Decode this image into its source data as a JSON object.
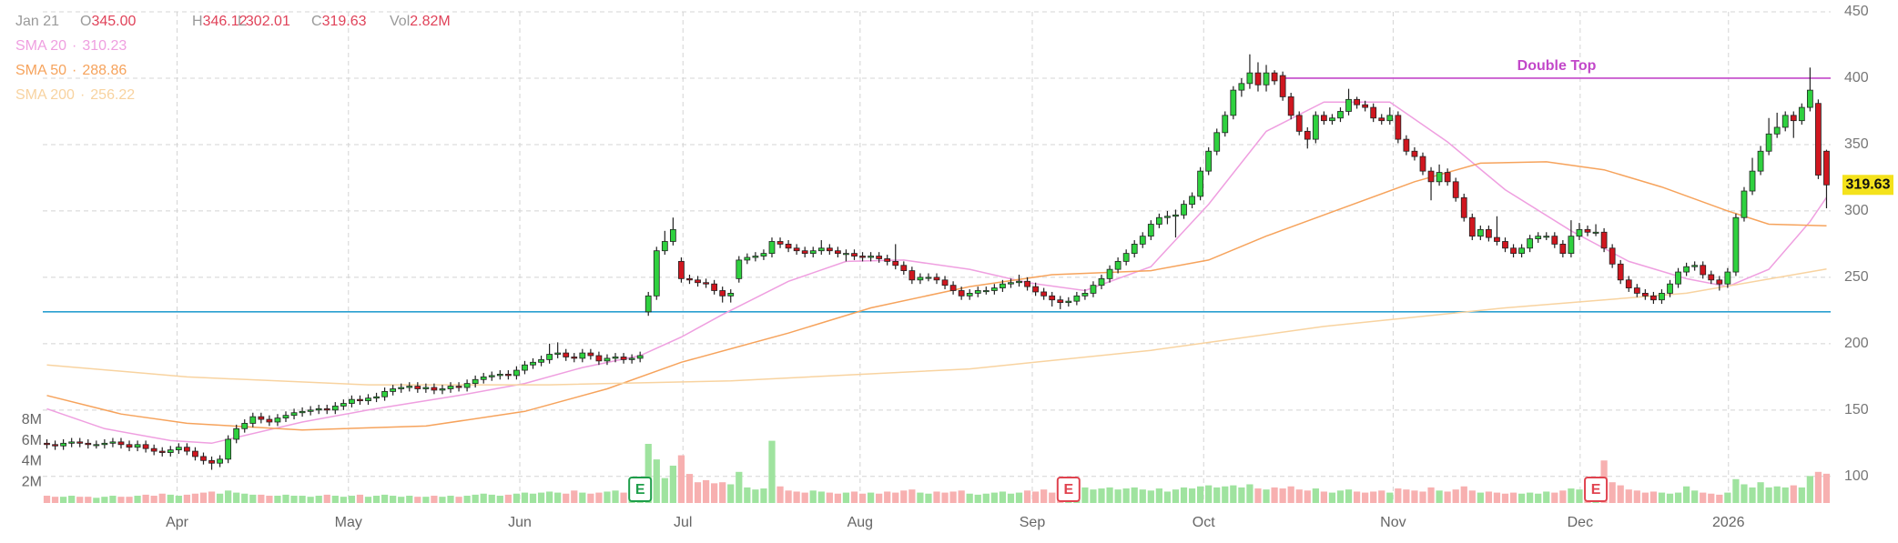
{
  "header": {
    "date": "Jan 21",
    "fields": [
      {
        "key": "O",
        "value": "345.00"
      },
      {
        "key": "H",
        "value": "346.12"
      },
      {
        "key": "L",
        "value": "302.01"
      },
      {
        "key": "C",
        "value": "319.63"
      },
      {
        "key": "Vol",
        "value": "2.82M"
      }
    ]
  },
  "chart_data": {
    "type": "candlestick",
    "open": [
      125,
      124,
      123,
      125,
      126,
      125,
      124,
      124,
      125,
      126,
      124,
      122,
      124,
      121,
      119,
      118,
      120,
      122,
      119,
      115,
      112,
      110,
      113,
      128,
      136,
      140,
      145,
      143,
      141,
      144,
      146,
      148,
      149,
      150,
      151,
      150,
      153,
      155,
      158,
      157,
      159,
      160,
      164,
      166,
      167,
      168,
      166,
      167,
      165,
      166,
      168,
      167,
      170,
      173,
      175,
      176,
      177,
      176,
      180,
      184,
      186,
      188,
      192,
      193,
      190,
      189,
      193,
      191,
      187,
      189,
      190,
      188,
      189,
      224,
      236,
      270,
      277,
      262,
      249,
      248,
      246,
      245,
      240,
      236,
      249,
      263,
      265,
      266,
      268,
      277,
      275,
      272,
      270,
      268,
      270,
      272,
      270,
      268,
      268,
      266,
      265,
      266,
      264,
      262,
      259,
      255,
      248,
      250,
      250,
      248,
      244,
      240,
      236,
      238,
      240,
      240,
      242,
      245,
      246,
      247,
      243,
      239,
      236,
      233,
      231,
      232,
      236,
      238,
      244,
      249,
      256,
      262,
      268,
      275,
      281,
      290,
      295,
      296,
      297,
      305,
      311,
      330,
      345,
      359,
      372,
      391,
      396,
      404,
      395,
      404,
      402,
      386,
      372,
      360,
      354,
      372,
      368,
      370,
      375,
      384,
      380,
      378,
      370,
      368,
      372,
      354,
      345,
      341,
      330,
      322,
      329,
      322,
      310,
      295,
      281,
      286,
      280,
      277,
      272,
      268,
      272,
      279,
      281,
      281,
      275,
      268,
      281,
      286,
      284,
      284,
      272,
      260,
      248,
      242,
      238,
      236,
      233,
      238,
      245,
      254,
      258,
      259,
      252,
      248,
      245,
      254,
      295,
      315,
      330,
      345,
      358,
      363,
      372,
      368,
      378,
      381,
      345
    ],
    "high": [
      128,
      127,
      128,
      129,
      129,
      128,
      127,
      128,
      129,
      129,
      127,
      127,
      127,
      124,
      122,
      123,
      125,
      125,
      122,
      118,
      115,
      116,
      131,
      139,
      143,
      148,
      148,
      146,
      147,
      149,
      151,
      152,
      153,
      154,
      154,
      156,
      158,
      161,
      161,
      162,
      163,
      167,
      169,
      170,
      171,
      171,
      170,
      170,
      169,
      171,
      171,
      173,
      176,
      178,
      179,
      180,
      180,
      183,
      187,
      189,
      191,
      200,
      201,
      196,
      193,
      196,
      196,
      194,
      192,
      193,
      193,
      192,
      194,
      239,
      273,
      285,
      295,
      265,
      252,
      251,
      249,
      248,
      243,
      241,
      266,
      268,
      269,
      271,
      280,
      280,
      278,
      275,
      273,
      273,
      278,
      275,
      273,
      271,
      271,
      269,
      269,
      269,
      267,
      275,
      262,
      258,
      253,
      253,
      253,
      251,
      247,
      243,
      241,
      243,
      243,
      245,
      248,
      249,
      252,
      250,
      246,
      242,
      239,
      236,
      235,
      239,
      241,
      247,
      252,
      259,
      265,
      271,
      278,
      284,
      293,
      298,
      300,
      301,
      308,
      314,
      333,
      348,
      362,
      375,
      394,
      400,
      418,
      412,
      410,
      406,
      405,
      389,
      375,
      363,
      375,
      375,
      373,
      378,
      392,
      386,
      383,
      381,
      373,
      378,
      375,
      357,
      348,
      344,
      333,
      335,
      332,
      325,
      313,
      298,
      289,
      289,
      296,
      280,
      275,
      275,
      282,
      284,
      284,
      284,
      278,
      293,
      291,
      289,
      290,
      287,
      275,
      263,
      251,
      245,
      241,
      239,
      241,
      248,
      257,
      261,
      262,
      262,
      255,
      251,
      257,
      298,
      318,
      340,
      349,
      370,
      374,
      375,
      375,
      381,
      408,
      384,
      346.12
    ],
    "low": [
      121,
      120,
      120,
      122,
      122,
      121,
      121,
      121,
      122,
      121,
      119,
      119,
      118,
      116,
      115,
      115,
      117,
      116,
      112,
      109,
      105,
      107,
      110,
      125,
      133,
      137,
      140,
      138,
      138,
      141,
      143,
      145,
      146,
      147,
      147,
      147,
      150,
      152,
      154,
      154,
      156,
      157,
      161,
      163,
      164,
      163,
      163,
      162,
      162,
      163,
      164,
      164,
      167,
      170,
      172,
      173,
      173,
      173,
      177,
      181,
      183,
      185,
      189,
      187,
      186,
      186,
      188,
      184,
      184,
      186,
      185,
      185,
      186,
      221,
      233,
      267,
      274,
      246,
      245,
      243,
      242,
      237,
      231,
      231,
      246,
      260,
      262,
      263,
      265,
      272,
      269,
      267,
      265,
      265,
      267,
      267,
      265,
      262,
      263,
      262,
      262,
      261,
      259,
      256,
      252,
      245,
      245,
      247,
      245,
      241,
      237,
      233,
      233,
      235,
      237,
      237,
      239,
      242,
      243,
      240,
      236,
      233,
      228,
      226,
      228,
      229,
      233,
      235,
      241,
      246,
      253,
      259,
      265,
      272,
      278,
      287,
      290,
      280,
      294,
      302,
      308,
      327,
      342,
      356,
      369,
      386,
      392,
      390,
      390,
      395,
      383,
      369,
      357,
      347,
      351,
      365,
      365,
      367,
      372,
      377,
      375,
      367,
      365,
      365,
      351,
      342,
      338,
      327,
      308,
      319,
      319,
      307,
      292,
      278,
      278,
      277,
      274,
      269,
      265,
      265,
      269,
      276,
      278,
      272,
      265,
      265,
      278,
      281,
      281,
      269,
      257,
      245,
      239,
      235,
      233,
      230,
      230,
      235,
      242,
      251,
      255,
      249,
      245,
      240,
      242,
      251,
      292,
      312,
      327,
      342,
      355,
      360,
      355,
      365,
      375,
      324,
      302.01
    ],
    "close": [
      124,
      123,
      125,
      126,
      125,
      124,
      124,
      125,
      126,
      124,
      122,
      124,
      121,
      119,
      118,
      120,
      122,
      119,
      115,
      112,
      110,
      113,
      128,
      136,
      140,
      145,
      143,
      141,
      144,
      146,
      148,
      149,
      150,
      151,
      150,
      153,
      155,
      158,
      157,
      159,
      160,
      164,
      166,
      167,
      168,
      166,
      167,
      165,
      166,
      168,
      167,
      170,
      173,
      175,
      176,
      177,
      176,
      180,
      184,
      186,
      188,
      192,
      193,
      190,
      189,
      193,
      191,
      187,
      189,
      190,
      188,
      189,
      191,
      236,
      270,
      277,
      286,
      249,
      248,
      246,
      245,
      240,
      236,
      238,
      263,
      265,
      266,
      268,
      277,
      275,
      272,
      270,
      268,
      270,
      272,
      270,
      268,
      268,
      266,
      265,
      266,
      264,
      262,
      259,
      255,
      248,
      250,
      250,
      248,
      244,
      240,
      236,
      238,
      240,
      240,
      242,
      245,
      246,
      247,
      243,
      239,
      236,
      233,
      231,
      232,
      236,
      238,
      244,
      249,
      256,
      262,
      268,
      275,
      281,
      290,
      295,
      296,
      297,
      305,
      311,
      330,
      345,
      359,
      372,
      391,
      396,
      404,
      395,
      404,
      398,
      386,
      372,
      360,
      354,
      372,
      368,
      370,
      375,
      384,
      380,
      378,
      370,
      368,
      372,
      354,
      345,
      341,
      330,
      322,
      329,
      322,
      310,
      295,
      281,
      286,
      280,
      277,
      272,
      268,
      272,
      279,
      281,
      281,
      275,
      268,
      281,
      286,
      284,
      284,
      272,
      260,
      248,
      242,
      238,
      236,
      233,
      238,
      245,
      254,
      258,
      259,
      252,
      248,
      245,
      254,
      295,
      315,
      330,
      345,
      358,
      363,
      372,
      368,
      378,
      391,
      327,
      319.63
    ],
    "volume": [
      0.7,
      0.6,
      0.6,
      0.7,
      0.6,
      0.6,
      0.5,
      0.6,
      0.7,
      0.6,
      0.6,
      0.7,
      0.8,
      0.7,
      0.9,
      0.8,
      0.7,
      0.8,
      0.9,
      1.0,
      1.1,
      0.9,
      1.2,
      1.0,
      0.9,
      0.8,
      0.8,
      0.7,
      0.7,
      0.8,
      0.7,
      0.7,
      0.6,
      0.7,
      0.8,
      0.7,
      0.6,
      0.7,
      0.8,
      0.6,
      0.7,
      0.8,
      0.7,
      0.6,
      0.7,
      0.6,
      0.6,
      0.7,
      0.6,
      0.7,
      0.6,
      0.7,
      0.8,
      0.9,
      0.8,
      0.7,
      0.8,
      0.9,
      1.0,
      0.9,
      1.0,
      1.1,
      1.0,
      0.9,
      1.2,
      1.0,
      0.9,
      1.0,
      1.1,
      1.2,
      1.0,
      1.1,
      1.3,
      5.7,
      4.2,
      2.4,
      3.6,
      4.6,
      2.8,
      2.0,
      2.2,
      1.9,
      2.0,
      1.8,
      3.0,
      1.5,
      1.3,
      1.4,
      6.0,
      1.6,
      1.2,
      1.1,
      1.0,
      1.2,
      1.1,
      1.0,
      0.9,
      1.0,
      1.1,
      0.9,
      1.0,
      0.9,
      1.1,
      1.0,
      1.2,
      1.3,
      1.0,
      0.9,
      1.1,
      1.0,
      1.1,
      1.2,
      0.9,
      0.8,
      0.9,
      1.0,
      1.1,
      0.9,
      1.0,
      1.2,
      1.1,
      1.3,
      1.0,
      1.2,
      1.6,
      1.4,
      1.5,
      1.3,
      1.4,
      1.5,
      1.3,
      1.4,
      1.5,
      1.3,
      1.2,
      1.4,
      1.1,
      1.3,
      1.5,
      1.4,
      1.6,
      1.7,
      1.5,
      1.6,
      1.7,
      1.5,
      1.8,
      1.4,
      1.3,
      1.5,
      1.4,
      1.6,
      1.3,
      1.2,
      1.4,
      1.1,
      1.0,
      1.2,
      1.3,
      1.1,
      1.0,
      1.1,
      1.2,
      1.0,
      1.4,
      1.3,
      1.2,
      1.1,
      1.5,
      1.2,
      1.1,
      1.3,
      1.6,
      1.2,
      1.0,
      1.1,
      1.0,
      0.9,
      1.0,
      0.9,
      1.0,
      0.9,
      1.1,
      1.0,
      1.2,
      1.4,
      1.3,
      1.2,
      2.5,
      4.1,
      2.0,
      1.7,
      1.3,
      1.2,
      1.0,
      1.1,
      1.0,
      0.9,
      1.0,
      1.6,
      1.2,
      1.0,
      0.9,
      0.8,
      1.0,
      2.3,
      1.8,
      1.5,
      2.0,
      1.5,
      1.6,
      1.5,
      1.7,
      1.5,
      2.6,
      3.0,
      2.82
    ],
    "up_color": "#2fd13f",
    "down_color": "#d0161f",
    "volume_up_color": "#9fe39f",
    "volume_down_color": "#f7b0b0",
    "ylim": [
      80,
      450
    ],
    "yticks": [
      100,
      150,
      200,
      250,
      300,
      350,
      400,
      450
    ],
    "volume_ylim": [
      0,
      10
    ],
    "volume_ticks": [
      {
        "value": 2,
        "label": "2M"
      },
      {
        "value": 4,
        "label": "4M"
      },
      {
        "value": 6,
        "label": "6M"
      },
      {
        "value": 8,
        "label": "8M"
      }
    ],
    "xticks": [
      {
        "value": 15.8,
        "label": "Apr"
      },
      {
        "value": 36.6,
        "label": "May"
      },
      {
        "value": 57.4,
        "label": "Jun"
      },
      {
        "value": 77.2,
        "label": "Jul"
      },
      {
        "value": 98.7,
        "label": "Aug"
      },
      {
        "value": 119.6,
        "label": "Sep"
      },
      {
        "value": 140.4,
        "label": "Oct"
      },
      {
        "value": 163.4,
        "label": "Nov"
      },
      {
        "value": 186.1,
        "label": "Dec"
      },
      {
        "value": 204.1,
        "label": "2026"
      }
    ],
    "grid": true,
    "separator": "·",
    "sma": [
      {
        "name": "SMA 20",
        "color": "#ef9fe0",
        "x": [
          0,
          7,
          15,
          20,
          31,
          39,
          50,
          58,
          65,
          72,
          77,
          82,
          90,
          97,
          104,
          112,
          119,
          126,
          134,
          141,
          148,
          155,
          163,
          170,
          177,
          185,
          192,
          199,
          204,
          209,
          214,
          216
        ],
        "values": [
          151,
          136,
          127,
          125,
          141,
          150,
          161,
          170,
          182,
          191,
          205,
          222,
          247,
          262,
          263,
          256,
          246,
          240,
          258,
          305,
          360,
          382,
          382,
          352,
          316,
          285,
          262,
          249,
          243,
          256,
          292,
          310.23
        ]
      },
      {
        "name": "SMA 50",
        "color": "#f6a35c",
        "x": [
          0,
          9,
          17,
          31,
          46,
          58,
          68,
          77,
          90,
          100,
          112,
          122,
          134,
          141,
          148,
          155,
          166,
          174,
          182,
          189,
          196,
          204,
          209,
          216
        ],
        "values": [
          161,
          147,
          140,
          135,
          138,
          149,
          166,
          186,
          208,
          227,
          243,
          252,
          255,
          263,
          281,
          297,
          322,
          336,
          337,
          331,
          318,
          300,
          290,
          288.86
        ]
      },
      {
        "name": "SMA 200",
        "color": "#f8d3a0",
        "x": [
          0,
          17,
          39,
          61,
          83,
          112,
          134,
          155,
          177,
          199,
          216
        ],
        "values": [
          184,
          175,
          169,
          169,
          172,
          181,
          195,
          213,
          227,
          238,
          256.22
        ]
      }
    ],
    "hlines": [
      {
        "value": 224,
        "color": "#2a9fd0"
      },
      {
        "value": 400,
        "x0": 150,
        "color": "#c247c9",
        "label": "Double Top"
      }
    ],
    "events": [
      {
        "x": 72,
        "label": "E",
        "color": "#1e9e4a"
      },
      {
        "x": 124,
        "label": "E",
        "color": "#e0434f"
      },
      {
        "x": 188,
        "label": "E",
        "color": "#e0434f"
      }
    ],
    "last_price_color": "#f4e21c"
  }
}
